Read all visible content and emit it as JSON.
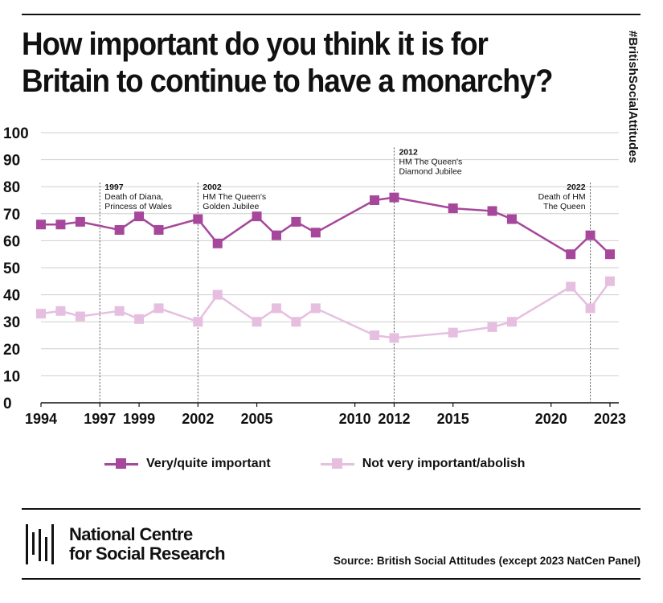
{
  "title": "How important do you think it is for Britain to continue to have a monarchy?",
  "hashtag": "#BritishSocialAttitudes",
  "source": "Source: British Social Attitudes (except 2023 NatCen Panel)",
  "logo": {
    "line1": "National Centre",
    "line2": "for Social Research"
  },
  "chart_data": {
    "type": "line",
    "xlim": [
      1994,
      2023
    ],
    "ylim": [
      0,
      100
    ],
    "y_ticks": [
      0,
      10,
      20,
      30,
      40,
      50,
      60,
      70,
      80,
      90,
      100
    ],
    "x_ticks": [
      1994,
      1997,
      1999,
      2002,
      2005,
      2010,
      2012,
      2015,
      2020,
      2023
    ],
    "grid": "horizontal",
    "legend_position": "bottom",
    "series": [
      {
        "name": "Very/quite important",
        "color": "#a6479b",
        "points": [
          [
            1994,
            66
          ],
          [
            1995,
            66
          ],
          [
            1996,
            67
          ],
          [
            1998,
            64
          ],
          [
            1999,
            69
          ],
          [
            2000,
            64
          ],
          [
            2002,
            68
          ],
          [
            2003,
            59
          ],
          [
            2005,
            69
          ],
          [
            2006,
            62
          ],
          [
            2007,
            67
          ],
          [
            2008,
            63
          ],
          [
            2011,
            75
          ],
          [
            2012,
            76
          ],
          [
            2015,
            72
          ],
          [
            2017,
            71
          ],
          [
            2018,
            68
          ],
          [
            2021,
            55
          ],
          [
            2022,
            62
          ],
          [
            2023,
            55
          ]
        ]
      },
      {
        "name": "Not very important/abolish",
        "color": "#e6bfe0",
        "points": [
          [
            1994,
            33
          ],
          [
            1995,
            34
          ],
          [
            1996,
            32
          ],
          [
            1998,
            34
          ],
          [
            1999,
            31
          ],
          [
            2000,
            35
          ],
          [
            2002,
            30
          ],
          [
            2003,
            40
          ],
          [
            2005,
            30
          ],
          [
            2006,
            35
          ],
          [
            2007,
            30
          ],
          [
            2008,
            35
          ],
          [
            2011,
            25
          ],
          [
            2012,
            24
          ],
          [
            2015,
            26
          ],
          [
            2017,
            28
          ],
          [
            2018,
            30
          ],
          [
            2021,
            43
          ],
          [
            2022,
            35
          ],
          [
            2023,
            45
          ]
        ]
      }
    ],
    "annotations": [
      {
        "x": 1997,
        "lines": [
          "1997",
          "Death of Diana,",
          "Princess of Wales"
        ],
        "label_top": 80,
        "align": "left"
      },
      {
        "x": 2002,
        "lines": [
          "2002",
          "HM The Queen's",
          "Golden Jubilee"
        ],
        "label_top": 80,
        "align": "left"
      },
      {
        "x": 2012,
        "lines": [
          "2012",
          "HM The Queen's",
          "Diamond Jubilee"
        ],
        "label_top": 93,
        "align": "left"
      },
      {
        "x": 2022,
        "lines": [
          "2022",
          "Death of HM",
          "The Queen"
        ],
        "label_top": 80,
        "align": "right"
      }
    ]
  }
}
